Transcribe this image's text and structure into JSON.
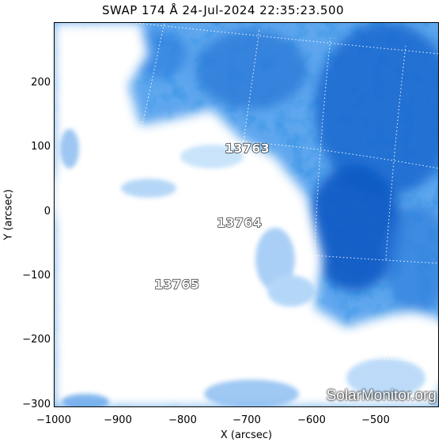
{
  "title": "SWAP 174 Å 24-Jul-2024 22:35:23.500",
  "x_axis": {
    "label": "X (arcsec)",
    "ticks": [
      "−1000",
      "−900",
      "−800",
      "−700",
      "−600",
      "−500"
    ]
  },
  "y_axis": {
    "label": "Y (arcsec)",
    "ticks": [
      "200",
      "100",
      "0",
      "−100",
      "−200",
      "−300"
    ]
  },
  "active_regions": [
    {
      "number": "13763"
    },
    {
      "number": "13764"
    },
    {
      "number": "13765"
    }
  ],
  "watermark": "SolarMonitor.org",
  "colors": {
    "deep_blue": "#0a5cc8",
    "mid_blue": "#3d8fe6",
    "light_blue": "#a9d2f8",
    "saturated": "#ffffff",
    "grid": "#ffffff"
  }
}
